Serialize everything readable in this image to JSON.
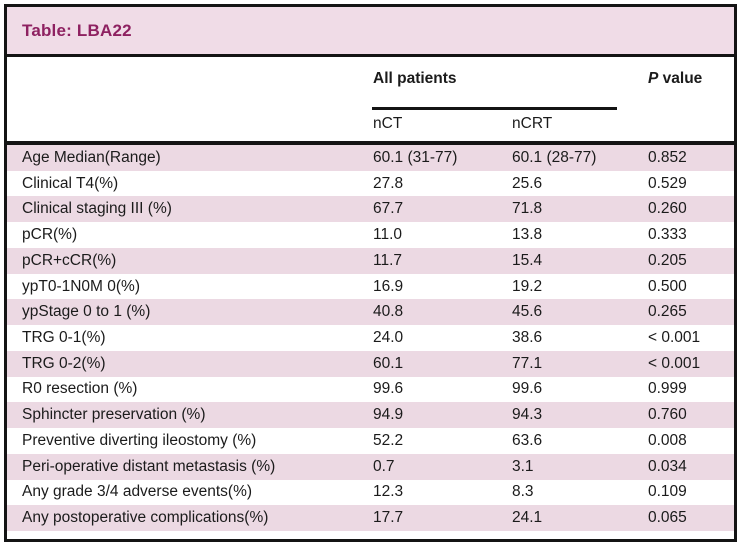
{
  "title": "Table: LBA22",
  "header": {
    "group_label": "All patients",
    "subcol_nct": "nCT",
    "subcol_ncrt": "nCRT",
    "p_italic": "P",
    "p_rest": " value"
  },
  "colors": {
    "title_text": "#8e2161",
    "band_pink": "#f0dce7",
    "stripe_pink": "#ecd9e3",
    "border_black": "#141414",
    "text_black": "#1b1b1b"
  },
  "rows": [
    {
      "label": "Age Median(Range)",
      "nct": "60.1 (31-77)",
      "ncrt": "60.1 (28-77)",
      "p": "0.852"
    },
    {
      "label": "Clinical T4(%)",
      "nct": "27.8",
      "ncrt": "25.6",
      "p": "0.529"
    },
    {
      "label": "Clinical staging III (%)",
      "nct": "67.7",
      "ncrt": "71.8",
      "p": "0.260"
    },
    {
      "label": "pCR(%)",
      "nct": "11.0",
      "ncrt": "13.8",
      "p": "0.333"
    },
    {
      "label": "pCR+cCR(%)",
      "nct": "11.7",
      "ncrt": "15.4",
      "p": "0.205"
    },
    {
      "label": "ypT0-1N0M 0(%)",
      "nct": "16.9",
      "ncrt": "19.2",
      "p": "0.500"
    },
    {
      "label": "ypStage 0 to 1 (%)",
      "nct": "40.8",
      "ncrt": "45.6",
      "p": "0.265"
    },
    {
      "label": "TRG 0-1(%)",
      "nct": "24.0",
      "ncrt": "38.6",
      "p": "< 0.001"
    },
    {
      "label": "TRG 0-2(%)",
      "nct": "60.1",
      "ncrt": "77.1",
      "p": "< 0.001"
    },
    {
      "label": "R0 resection (%)",
      "nct": "99.6",
      "ncrt": "99.6",
      "p": "0.999"
    },
    {
      "label": "Sphincter preservation (%)",
      "nct": "94.9",
      "ncrt": "94.3",
      "p": "0.760"
    },
    {
      "label": "Preventive diverting ileostomy (%)",
      "nct": "52.2",
      "ncrt": "63.6",
      "p": "0.008"
    },
    {
      "label": "Peri-operative distant metastasis (%)",
      "nct": "0.7",
      "ncrt": "3.1",
      "p": "0.034"
    },
    {
      "label": "Any grade 3/4 adverse events(%)",
      "nct": "12.3",
      "ncrt": "8.3",
      "p": "0.109"
    },
    {
      "label": "Any postoperative complications(%)",
      "nct": "17.7",
      "ncrt": "24.1",
      "p": "0.065"
    }
  ]
}
